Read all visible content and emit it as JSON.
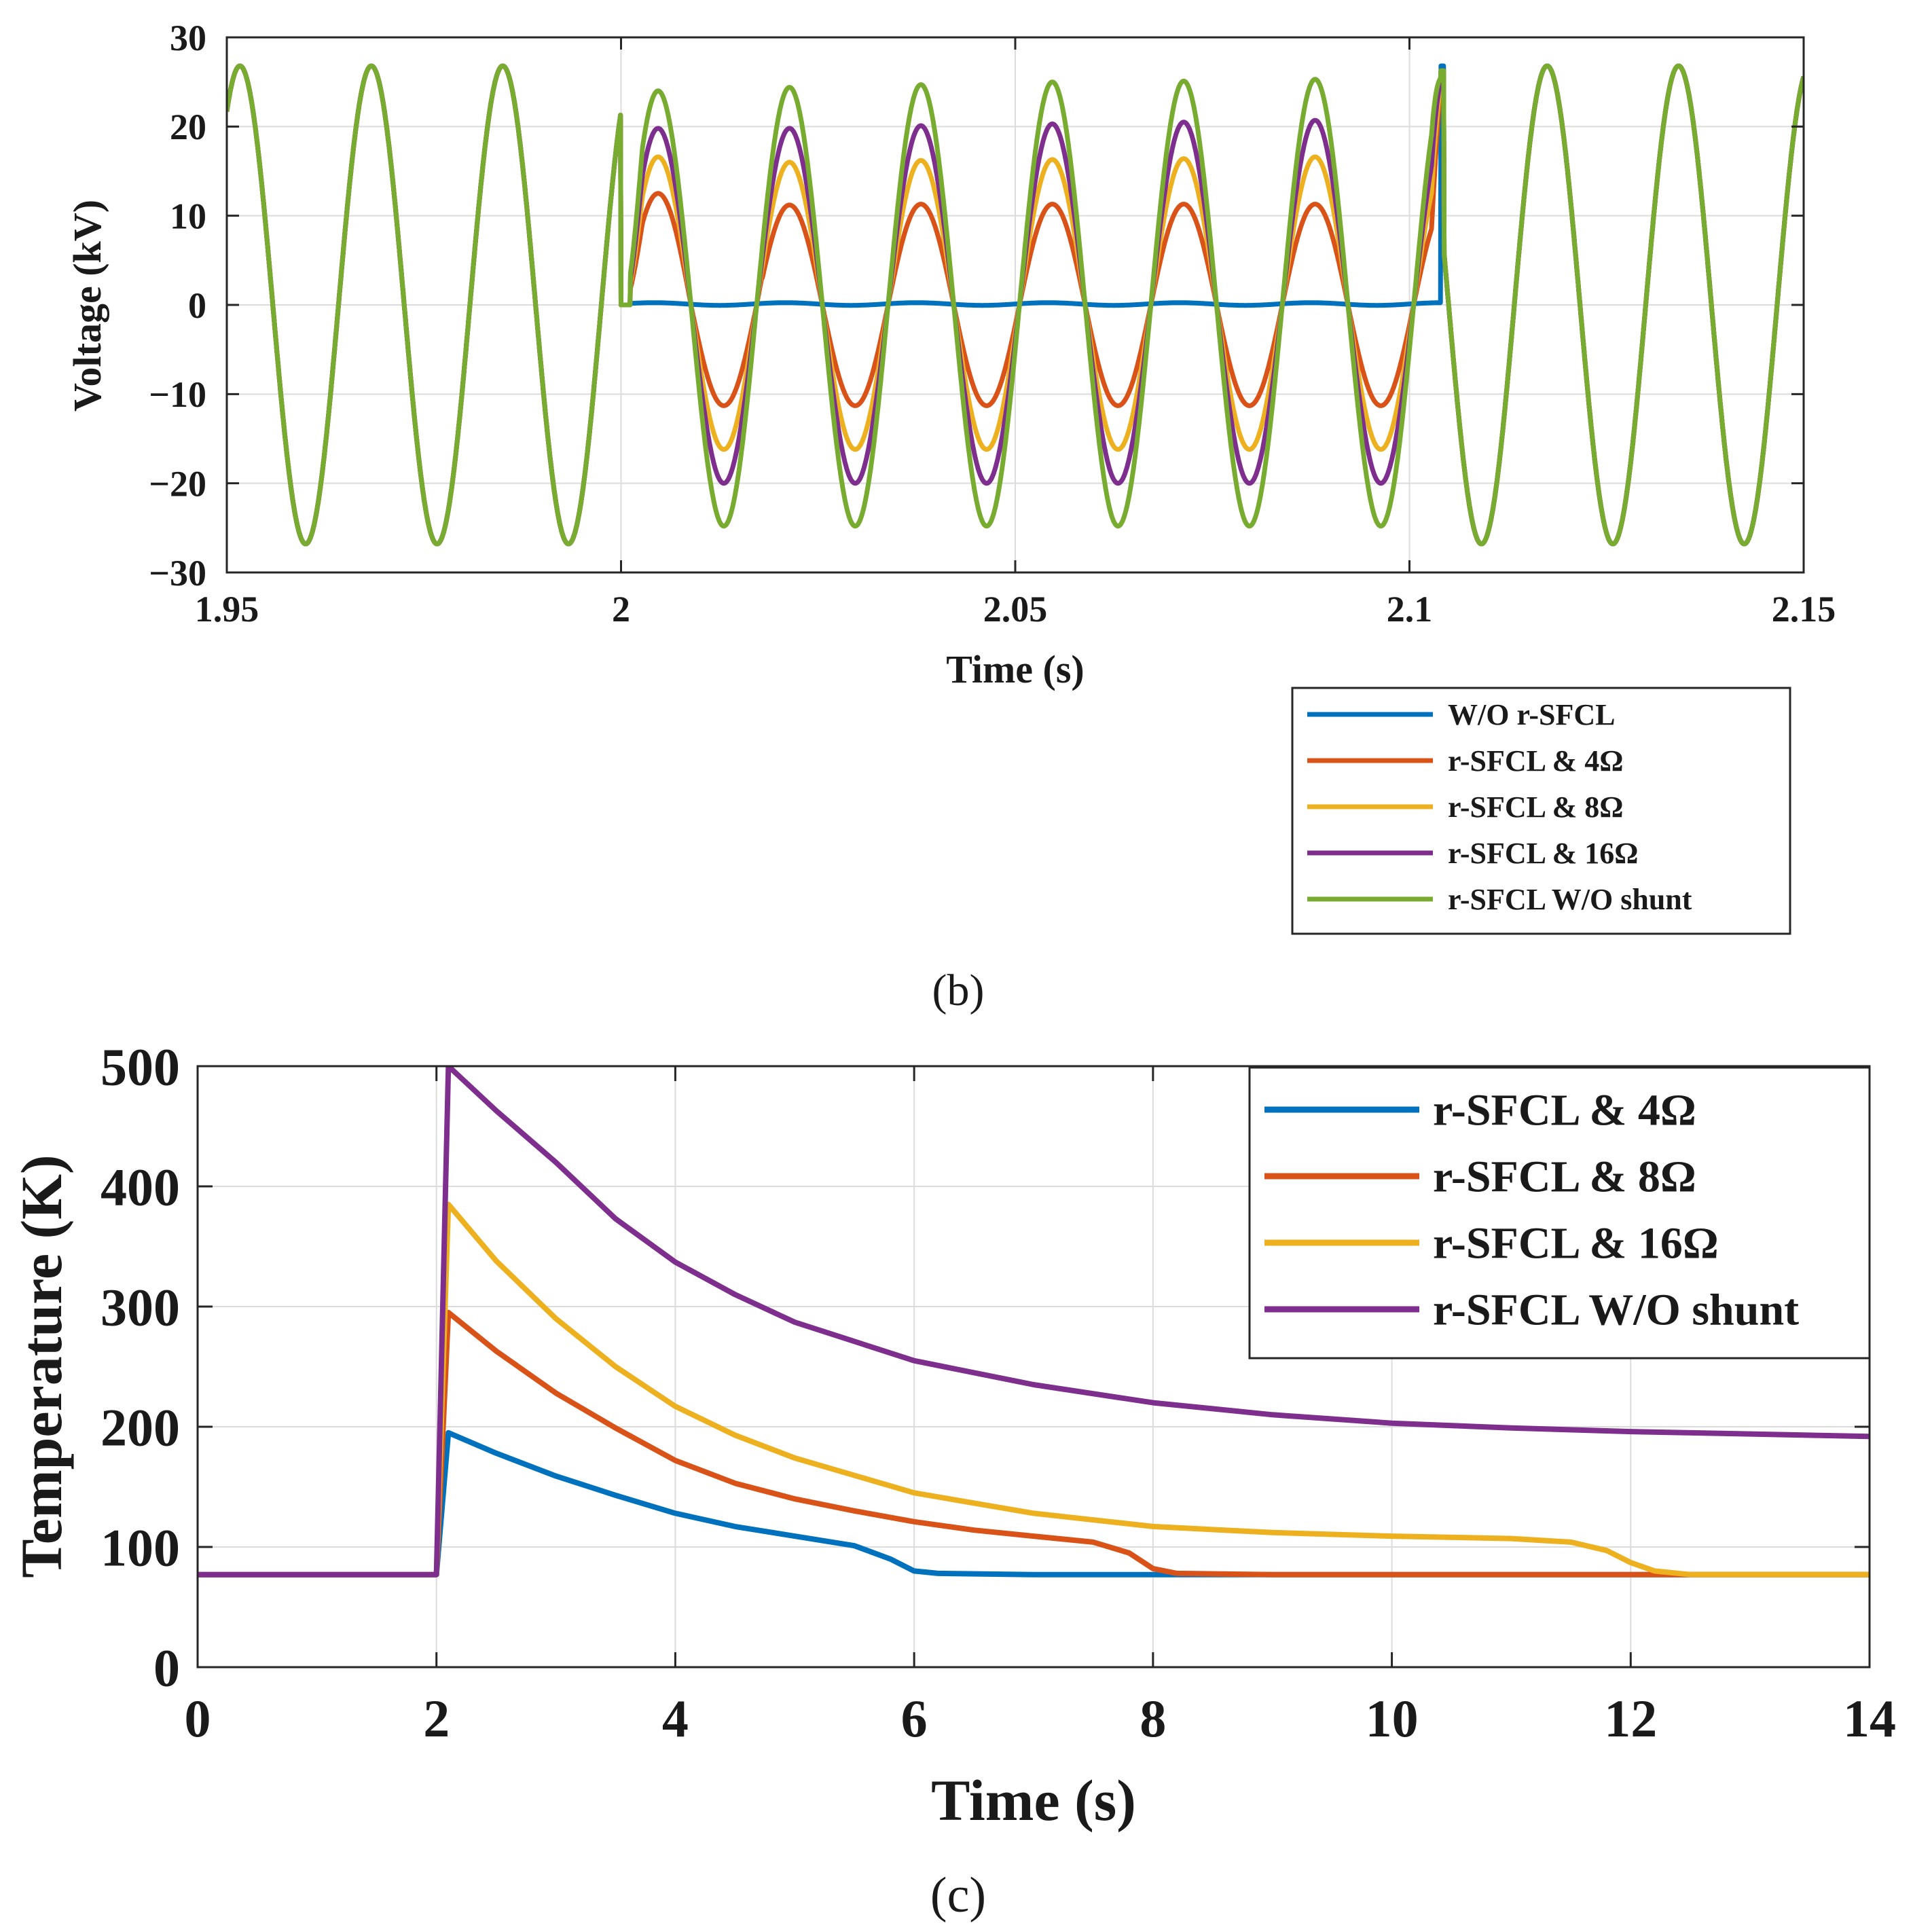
{
  "chart_data": [
    {
      "id": "b",
      "type": "line",
      "caption": "(b)",
      "xlabel": "Time (s)",
      "ylabel": "Voltage (kV)",
      "xlim": [
        1.95,
        2.15
      ],
      "ylim": [
        -30,
        30
      ],
      "xticks": [
        1.95,
        2,
        2.05,
        2.1,
        2.15
      ],
      "xtick_labels": [
        "1.95",
        "2",
        "2.05",
        "2.1",
        "2.15"
      ],
      "yticks": [
        -30,
        -20,
        -10,
        0,
        10,
        20,
        30
      ],
      "ytick_labels": [
        "−30",
        "−20",
        "−10",
        "0",
        "10",
        "20",
        "30"
      ],
      "grid": true,
      "legend_position": "below-right",
      "frequency_hz": 60,
      "fault_start_s": 2.0,
      "fault_clear_s": 2.104,
      "prefault_amplitude_kv": 26.8,
      "series": [
        {
          "name": "W/O r-SFCL",
          "color": "#0072BD",
          "fault_amplitude_kv": 0,
          "fault_offset_kv": 0.1
        },
        {
          "name": "r-SFCL & 4Ω",
          "color": "#D95319",
          "fault_peak_kv": [
            12.5,
            11.2,
            11.3,
            11.3,
            11.3,
            11.3
          ],
          "fault_trough_kv": -11.3
        },
        {
          "name": "r-SFCL & 8Ω",
          "color": "#EDB120",
          "fault_peak_kv": [
            16.6,
            16.0,
            16.2,
            16.3,
            16.4,
            16.6
          ],
          "fault_trough_kv": -16.2
        },
        {
          "name": "r-SFCL & 16Ω",
          "color": "#7E2F8E",
          "fault_peak_kv": [
            19.8,
            19.8,
            20.1,
            20.3,
            20.5,
            20.7
          ],
          "fault_trough_kv": -20.0
        },
        {
          "name": "r-SFCL W/O shunt",
          "color": "#77AC30",
          "fault_peak_kv": [
            24.0,
            24.4,
            24.7,
            25.0,
            25.1,
            25.3
          ],
          "fault_trough_kv": -24.8
        }
      ]
    },
    {
      "id": "c",
      "type": "line",
      "caption": "(c)",
      "xlabel": "Time (s)",
      "ylabel": "Temperature (K)",
      "xlim": [
        0,
        14
      ],
      "ylim": [
        0,
        500
      ],
      "xticks": [
        0,
        2,
        4,
        6,
        8,
        10,
        12,
        14
      ],
      "xtick_labels": [
        "0",
        "2",
        "4",
        "6",
        "8",
        "10",
        "12",
        "14"
      ],
      "yticks": [
        0,
        100,
        200,
        300,
        400,
        500
      ],
      "ytick_labels": [
        "0",
        "100",
        "200",
        "300",
        "400",
        "500"
      ],
      "grid": true,
      "legend_position": "top-right",
      "series": [
        {
          "name": "r-SFCL & 4Ω",
          "color": "#0072BD",
          "x": [
            0,
            2.0,
            2.1,
            2.5,
            3,
            3.5,
            4,
            4.5,
            5,
            5.5,
            5.8,
            6.0,
            6.2,
            7,
            14
          ],
          "y": [
            77,
            77,
            195,
            178,
            159,
            143,
            128,
            117,
            109,
            101,
            90,
            80,
            78,
            77,
            77
          ]
        },
        {
          "name": "r-SFCL & 8Ω",
          "color": "#D95319",
          "x": [
            0,
            2.0,
            2.1,
            2.5,
            3,
            3.5,
            4,
            4.5,
            5,
            5.5,
            6,
            6.5,
            7,
            7.5,
            7.8,
            8.0,
            8.2,
            9,
            14
          ],
          "y": [
            77,
            77,
            295,
            263,
            228,
            199,
            172,
            153,
            140,
            130,
            121,
            114,
            109,
            104,
            95,
            82,
            78,
            77,
            77
          ]
        },
        {
          "name": "r-SFCL & 16Ω",
          "color": "#EDB120",
          "x": [
            0,
            2.0,
            2.1,
            2.5,
            3,
            3.5,
            4,
            4.5,
            5,
            6,
            7,
            8,
            9,
            10,
            11,
            11.5,
            11.8,
            12.0,
            12.2,
            12.5,
            14
          ],
          "y": [
            77,
            77,
            385,
            338,
            290,
            250,
            217,
            193,
            174,
            145,
            128,
            117,
            112,
            109,
            107,
            104,
            97,
            87,
            80,
            77,
            77
          ]
        },
        {
          "name": "r-SFCL W/O shunt",
          "color": "#7E2F8E",
          "x": [
            0,
            2.0,
            2.1,
            2.5,
            3,
            3.5,
            4,
            4.5,
            5,
            6,
            7,
            8,
            9,
            10,
            11,
            12,
            13,
            14
          ],
          "y": [
            77,
            77,
            500,
            463,
            420,
            373,
            337,
            310,
            287,
            255,
            235,
            220,
            210,
            203,
            199,
            196,
            194,
            192
          ]
        }
      ]
    }
  ]
}
